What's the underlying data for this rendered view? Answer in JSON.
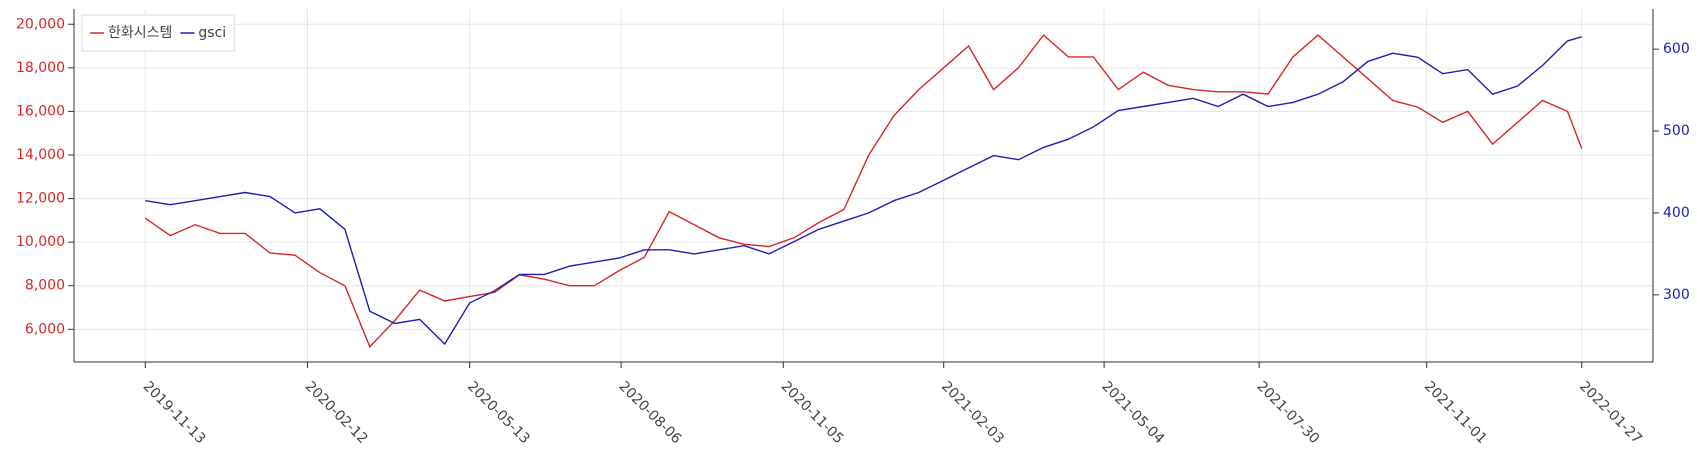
{
  "chart_data": {
    "type": "line",
    "x": [
      "2019-11-13",
      "2019-11-27",
      "2019-12-11",
      "2019-12-25",
      "2020-01-08",
      "2020-01-22",
      "2020-02-05",
      "2020-02-19",
      "2020-03-04",
      "2020-03-18",
      "2020-04-01",
      "2020-04-15",
      "2020-04-29",
      "2020-05-13",
      "2020-05-27",
      "2020-06-10",
      "2020-06-24",
      "2020-07-08",
      "2020-07-22",
      "2020-08-05",
      "2020-08-19",
      "2020-09-02",
      "2020-09-16",
      "2020-09-30",
      "2020-10-14",
      "2020-10-28",
      "2020-11-11",
      "2020-11-25",
      "2020-12-09",
      "2020-12-23",
      "2021-01-06",
      "2021-01-20",
      "2021-02-03",
      "2021-02-17",
      "2021-03-03",
      "2021-03-17",
      "2021-03-31",
      "2021-04-14",
      "2021-04-28",
      "2021-05-12",
      "2021-05-26",
      "2021-06-09",
      "2021-06-23",
      "2021-07-07",
      "2021-07-21",
      "2021-08-04",
      "2021-08-18",
      "2021-09-01",
      "2021-09-15",
      "2021-09-29",
      "2021-10-13",
      "2021-10-27",
      "2021-11-10",
      "2021-11-24",
      "2021-12-08",
      "2021-12-22",
      "2022-01-05",
      "2022-01-19",
      "2022-01-27"
    ],
    "series": [
      {
        "name": "한화시스템",
        "color": "#d62728",
        "values": [
          11100,
          10300,
          10800,
          10400,
          10400,
          9500,
          9400,
          8600,
          8000,
          5200,
          6400,
          7800,
          7300,
          7500,
          7700,
          8500,
          8300,
          8000,
          8000,
          8700,
          9300,
          11400,
          10800,
          10200,
          9900,
          9800,
          10200,
          10900,
          11500,
          14000,
          15800,
          17000,
          18000,
          19000,
          17000,
          18000,
          19500,
          18500,
          18500,
          17000,
          17800,
          17200,
          17000,
          16900,
          16900,
          16800,
          18500,
          19500,
          18500,
          17500,
          16500,
          16200,
          15500,
          16000,
          14500,
          15500,
          16500,
          16000,
          14300
        ]
      },
      {
        "name": "gsci",
        "color": "#1f1fb4",
        "axis": "y2",
        "values": [
          415,
          410,
          415,
          420,
          425,
          420,
          400,
          405,
          380,
          280,
          265,
          270,
          240,
          290,
          305,
          325,
          325,
          335,
          340,
          345,
          355,
          355,
          350,
          355,
          360,
          350,
          365,
          380,
          390,
          400,
          415,
          425,
          440,
          455,
          470,
          465,
          480,
          490,
          505,
          525,
          530,
          535,
          540,
          530,
          545,
          530,
          535,
          545,
          560,
          585,
          595,
          590,
          570,
          575,
          545,
          555,
          580,
          610,
          615
        ]
      }
    ],
    "xlim": [
      "2019-10-04",
      "2022-03-08"
    ],
    "xticks": [
      "2019-11-13",
      "2020-02-12",
      "2020-05-13",
      "2020-08-06",
      "2020-11-05",
      "2021-02-03",
      "2021-05-04",
      "2021-07-30",
      "2021-11-01",
      "2022-01-27"
    ],
    "ylim": [
      4500,
      20700
    ],
    "yticks": [
      {
        "value": 6000,
        "label": "6,000"
      },
      {
        "value": 8000,
        "label": "8,000"
      },
      {
        "value": 10000,
        "label": "10,000"
      },
      {
        "value": 12000,
        "label": "12,000"
      },
      {
        "value": 14000,
        "label": "14,000"
      },
      {
        "value": 16000,
        "label": "16,000"
      },
      {
        "value": 18000,
        "label": "18,000"
      },
      {
        "value": 20000,
        "label": "20,000"
      }
    ],
    "y2lim": [
      218,
      649
    ],
    "y2ticks": [
      300,
      400,
      500,
      600
    ],
    "grid": true,
    "legend": "upper-left"
  }
}
